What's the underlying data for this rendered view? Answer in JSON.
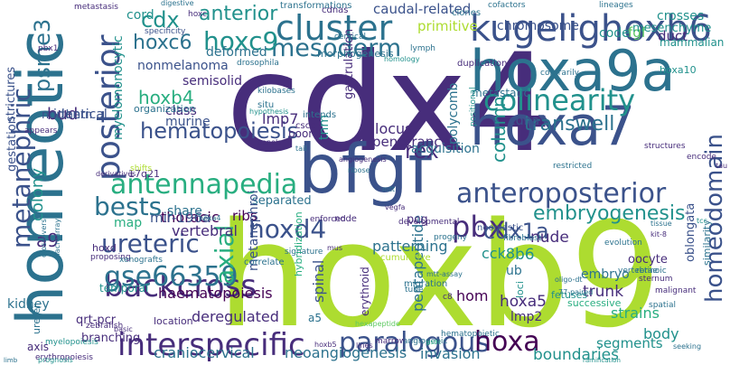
{
  "palette": {
    "dark_purple": "#440154",
    "indigo": "#472d7b",
    "blue": "#3b528b",
    "steel": "#2c728e",
    "teal": "#21918c",
    "green_teal": "#28ae80",
    "green": "#5ec962",
    "lime": "#addc30",
    "yellow_green": "#7ad151"
  },
  "words": [
    "cdx4",
    "hoxb9",
    "hoxa9a",
    "homeotic",
    "hoxa7",
    "bfgf",
    "kugelighoxb6",
    "cluster",
    "mesoderm",
    "hoxc9",
    "hoxc6",
    "cdx",
    "anterior",
    "colinearity",
    "transwell",
    "posterior",
    "antennapedia",
    "hematopoiesis",
    "bests",
    "anteroposterior",
    "interspecific",
    "paralogous",
    "hoxa",
    "backcross",
    "ureteric",
    "metanephric",
    "gse66359",
    "axial",
    "hoxd4",
    "pbx",
    "homeodomain",
    "rex",
    "column",
    "embryogenesis",
    "colony",
    "psme3",
    "a9",
    "bud",
    "hoxb4",
    "lmp7",
    "cdx1a",
    "cck8",
    "nude",
    "b6",
    "trunk",
    "strains",
    "body",
    "segments",
    "boundaries",
    "invasion",
    "neoangiogenesis",
    "craniocervical",
    "deregulated",
    "haematopoiesis",
    "spinal",
    "hom",
    "patterning",
    "pentapeptide",
    "hoxa5",
    "thoracic",
    "vertebral",
    "mir-196a",
    "ribs",
    "primitive",
    "caudal-related",
    "chromosome",
    "code",
    "fgf",
    "duct",
    "crosses",
    "mesenchyme",
    "mammalian",
    "hoxa10",
    "deformed",
    "semisolid",
    "nonmelanoma",
    "myelomonocytic",
    "identical",
    "class",
    "murine",
    "locus",
    "penetrance",
    "tnm",
    "cdna",
    "polycomb",
    "acquisition",
    "gastrulation",
    "metastatic",
    "strictures",
    "gestation",
    "northern",
    "kidney",
    "qrt-pcr",
    "share",
    "map",
    "pcg",
    "separated",
    "metanephroi",
    "lmp2",
    "embryo",
    "ub",
    "oblongata",
    "oocyte",
    "similarity",
    "fetuses",
    "loci",
    "successive",
    "erythroid",
    "a5",
    "branching",
    "location",
    "temporal",
    "axis",
    "ureter",
    "hoxd",
    "17q21",
    "cord",
    "transformations",
    "cdnas",
    "clones",
    "cofactors",
    "lineages",
    "metastasis",
    "digestive",
    "specificity",
    "pbx1",
    "morphogenesis",
    "lymph",
    "duplication",
    "contrarily",
    "cervical",
    "hoxc",
    "kilobases",
    "situ",
    "hypothesis",
    "intends",
    "cscc",
    "poor",
    "panels",
    "tail",
    "angiogenesis",
    "ribose",
    "derivatives",
    "shifts",
    "mtt",
    "vegfa",
    "enforced",
    "node",
    "neoplastic",
    "developmental",
    "progeny",
    "mus",
    "signature",
    "hoxa4",
    "proposing",
    "xenografts",
    "macroarray",
    "crossovers",
    "zebrafish",
    "basic",
    "marrow",
    "angiogenic",
    "hematopoietic",
    "tube",
    "migration",
    "ps9c",
    "lines",
    "hoxb5",
    "c8",
    "ramification",
    "malignant",
    "sternum",
    "vertebrae",
    "retinoic",
    "evolution",
    "encode",
    "structures",
    "restricted",
    "kit-8",
    "77-paired",
    "oligo-dt",
    "spatial",
    "tcc",
    "fibroblast",
    "hybridization",
    "correlate",
    "cumulative",
    "erythropoiesis",
    "prognosis",
    "myelopoiesis",
    "limb",
    "tissue",
    "seeking",
    "mtt-assay",
    "organization",
    "appears",
    "positional",
    "homology",
    "hexapeptide",
    "tau",
    "drosophila"
  ]
}
